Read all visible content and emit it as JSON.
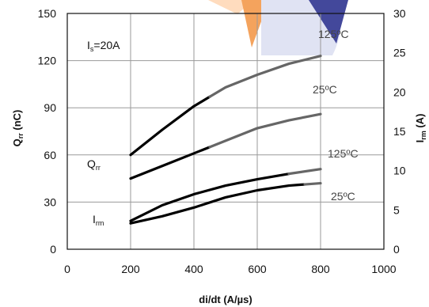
{
  "chart_data": {
    "type": "line",
    "title": "",
    "xlabel": "di/dt (A/µs)",
    "ylabel_left": {
      "main": "Q",
      "sub": "rr",
      "unit": " (nC)"
    },
    "ylabel_right": {
      "main": "I",
      "sub": "rm",
      "unit": " (A)"
    },
    "x_ticks": [
      0,
      200,
      400,
      600,
      800,
      1000
    ],
    "y_left_ticks": [
      0,
      30,
      60,
      90,
      120,
      150
    ],
    "y_right_ticks": [
      0,
      5,
      10,
      15,
      20,
      25,
      30
    ],
    "xlim": [
      0,
      1000
    ],
    "ylim_left": [
      0,
      150
    ],
    "ylim_right": [
      0,
      30
    ],
    "grid": true,
    "annotations": {
      "condition": {
        "main": "I",
        "sub": "s",
        "rest": "=20A"
      },
      "qrr_label": {
        "main": "Q",
        "sub": "rr"
      },
      "irm_label": {
        "main": "I",
        "sub": "rm"
      },
      "temp_labels": [
        "125ºC",
        "25ºC",
        "125ºC",
        "25ºC"
      ]
    },
    "series": [
      {
        "group": "Qrr",
        "temp": "125ºC",
        "axis": "left",
        "x": [
          200,
          300,
          400,
          500,
          600,
          700,
          800
        ],
        "y": [
          60,
          76,
          91,
          103,
          111,
          118,
          123
        ],
        "solid_to": 450,
        "color": "#000000",
        "faded": "#666666"
      },
      {
        "group": "Qrr",
        "temp": "25ºC",
        "axis": "left",
        "x": [
          200,
          300,
          400,
          500,
          600,
          700,
          800
        ],
        "y": [
          45,
          53,
          61,
          69,
          77,
          82,
          86
        ],
        "solid_to": 450,
        "color": "#000000",
        "faded": "#666666"
      },
      {
        "group": "Irm",
        "temp": "125ºC",
        "axis": "right",
        "x": [
          200,
          300,
          400,
          500,
          600,
          700,
          800
        ],
        "y": [
          3.6,
          5.6,
          7.0,
          8.1,
          8.9,
          9.6,
          10.2
        ],
        "solid_to": 700,
        "color": "#000000",
        "faded": "#666666"
      },
      {
        "group": "Irm",
        "temp": "25ºC",
        "axis": "right",
        "x": [
          200,
          300,
          400,
          500,
          600,
          700,
          800
        ],
        "y": [
          3.3,
          4.2,
          5.3,
          6.6,
          7.5,
          8.1,
          8.4
        ],
        "solid_to": 750,
        "color": "#000000",
        "faded": "#666666"
      }
    ]
  }
}
